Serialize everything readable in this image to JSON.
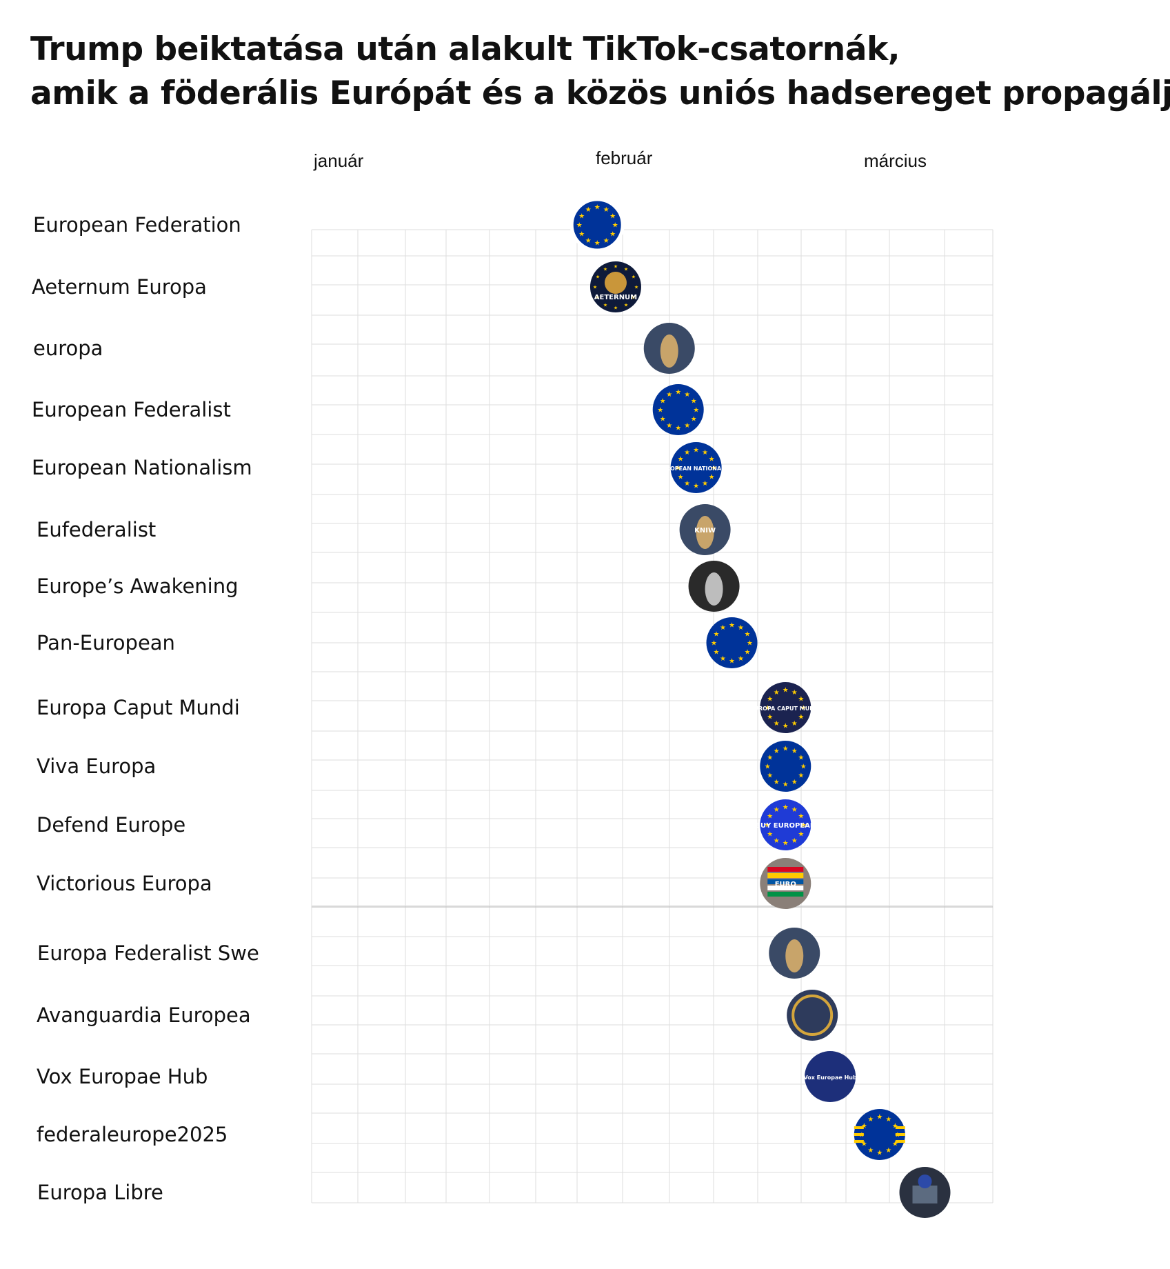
{
  "title_lines": [
    "Trump beiktatása után alakult TikTok-csatornák,",
    "amik a föderális Európát és a közös uniós hadsereget propagálják"
  ],
  "months": [
    "január",
    "február",
    "március"
  ],
  "colors": {
    "eu_blue": "#003399",
    "eu_gold": "#FFCC00",
    "grid": "#dddddd"
  },
  "chart_data": {
    "type": "scatter",
    "title": "Trump beiktatása után alakult TikTok-csatornák, amik a föderális Európát és a közös uniós hadsereget propagálják",
    "x_axis": {
      "type": "time",
      "labels": [
        "január",
        "február",
        "március"
      ],
      "range": [
        "2025-01-01",
        "2025-03-31"
      ]
    },
    "grid": true,
    "points": [
      {
        "channel": "European Federation",
        "date": "2025-01-31",
        "icon": "eu-flag-icon"
      },
      {
        "channel": "Aeternum Europa",
        "date": "2025-02-02",
        "icon": "lion-emblem-icon"
      },
      {
        "channel": "europa",
        "date": "2025-02-08",
        "icon": "statue-icon"
      },
      {
        "channel": "European Federalist",
        "date": "2025-02-09",
        "icon": "hands-eu-flag-icon"
      },
      {
        "channel": "European Nationalism",
        "date": "2025-02-11",
        "icon": "eu-flag-icon"
      },
      {
        "channel": "Eufederalist",
        "date": "2025-02-12",
        "icon": "statue-icon"
      },
      {
        "channel": "Europe’s Awakening",
        "date": "2025-02-13",
        "icon": "statue-icon"
      },
      {
        "channel": "Pan-European",
        "date": "2025-02-15",
        "icon": "eu-flag-icon"
      },
      {
        "channel": "Europa Caput Mundi",
        "date": "2025-02-21",
        "icon": "eu-flag-icon"
      },
      {
        "channel": "Viva Europa",
        "date": "2025-02-21",
        "icon": "eu-flag-icon"
      },
      {
        "channel": "Defend Europe",
        "date": "2025-02-21",
        "icon": "eu-flag-icon"
      },
      {
        "channel": "Victorious Europa",
        "date": "2025-02-21",
        "icon": "flags-icon"
      },
      {
        "channel": "Europa Federalist Swe",
        "date": "2025-02-22",
        "icon": "statue-icon"
      },
      {
        "channel": "Avanguardia Europea",
        "date": "2025-02-24",
        "icon": "emblem-icon"
      },
      {
        "channel": "Vox Europae Hub",
        "date": "2025-02-26",
        "icon": "text-badge-icon"
      },
      {
        "channel": "federaleurope2025",
        "date": "2025-03-06",
        "icon": "eu-flag-icon"
      },
      {
        "channel": "Europa Libre",
        "date": "2025-03-16",
        "icon": "building-icon"
      }
    ],
    "badge_texts": {
      "Aeternum Europa": "AETERNUM",
      "European Nationalism": "EUROPEAN NATIONALIST",
      "Eufederalist": "KNIW",
      "Europa Caput Mundi": "EUROPA CAPUT MUNDI",
      "Defend Europe": "BUY EUROPEAN",
      "Victorious Europa": "EURO",
      "Vox Europae Hub": "Vox Europae Hub"
    }
  }
}
